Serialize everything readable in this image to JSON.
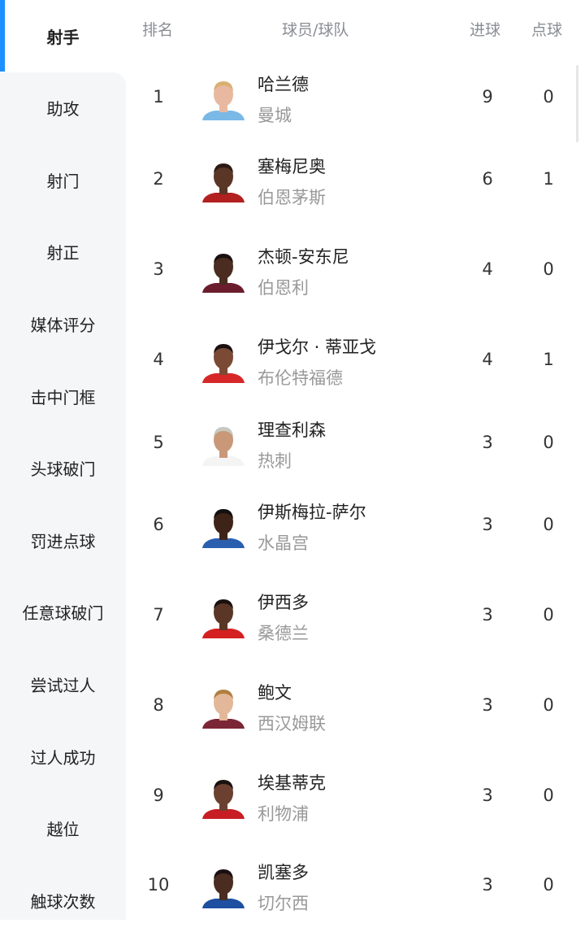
{
  "sidebar": {
    "items": [
      "射手",
      "助攻",
      "射门",
      "射正",
      "媒体评分",
      "击中门框",
      "头球破门",
      "罚进点球",
      "任意球破门",
      "尝试过人",
      "过人成功",
      "越位",
      "触球次数"
    ],
    "active_index": 0,
    "accent_color": "#1e90ff"
  },
  "header": {
    "rank": "排名",
    "player_team": "球员/球队",
    "goals": "进球",
    "penalties": "点球"
  },
  "rows": [
    {
      "rank": "1",
      "name": "哈兰德",
      "team": "曼城",
      "goals": "9",
      "penalties": "0",
      "skin": "#e8b9a0",
      "hair": "#d9b070",
      "jersey": "#7ab8e6"
    },
    {
      "rank": "2",
      "name": "塞梅尼奥",
      "team": "伯恩茅斯",
      "goals": "6",
      "penalties": "1",
      "skin": "#5a3626",
      "hair": "#2a1a12",
      "jersey": "#b22020"
    },
    {
      "rank": "3",
      "name": "杰顿-安东尼",
      "team": "伯恩利",
      "goals": "4",
      "penalties": "0",
      "skin": "#4a2c20",
      "hair": "#1a1010",
      "jersey": "#6b1d2e"
    },
    {
      "rank": "4",
      "name": "伊戈尔 · 蒂亚戈",
      "team": "布伦特福德",
      "goals": "4",
      "penalties": "1",
      "skin": "#7a4a34",
      "hair": "#1a1010",
      "jersey": "#d62828"
    },
    {
      "rank": "5",
      "name": "理查利森",
      "team": "热刺",
      "goals": "3",
      "penalties": "0",
      "skin": "#c99878",
      "hair": "#c8c8c0",
      "jersey": "#f4f4f4"
    },
    {
      "rank": "6",
      "name": "伊斯梅拉-萨尔",
      "team": "水晶宫",
      "goals": "3",
      "penalties": "0",
      "skin": "#3e2418",
      "hair": "#141010",
      "jersey": "#2a5fb0"
    },
    {
      "rank": "7",
      "name": "伊西多",
      "team": "桑德兰",
      "goals": "3",
      "penalties": "0",
      "skin": "#5a3626",
      "hair": "#1a1010",
      "jersey": "#d42020"
    },
    {
      "rank": "8",
      "name": "鲍文",
      "team": "西汉姆联",
      "goals": "3",
      "penalties": "0",
      "skin": "#e3b89a",
      "hair": "#b08040",
      "jersey": "#7a2636"
    },
    {
      "rank": "9",
      "name": "埃基蒂克",
      "team": "利物浦",
      "goals": "3",
      "penalties": "0",
      "skin": "#6b4030",
      "hair": "#1a1010",
      "jersey": "#c81d25"
    },
    {
      "rank": "10",
      "name": "凯塞多",
      "team": "切尔西",
      "goals": "3",
      "penalties": "0",
      "skin": "#4a2c20",
      "hair": "#1a1010",
      "jersey": "#1e4fa0"
    }
  ]
}
